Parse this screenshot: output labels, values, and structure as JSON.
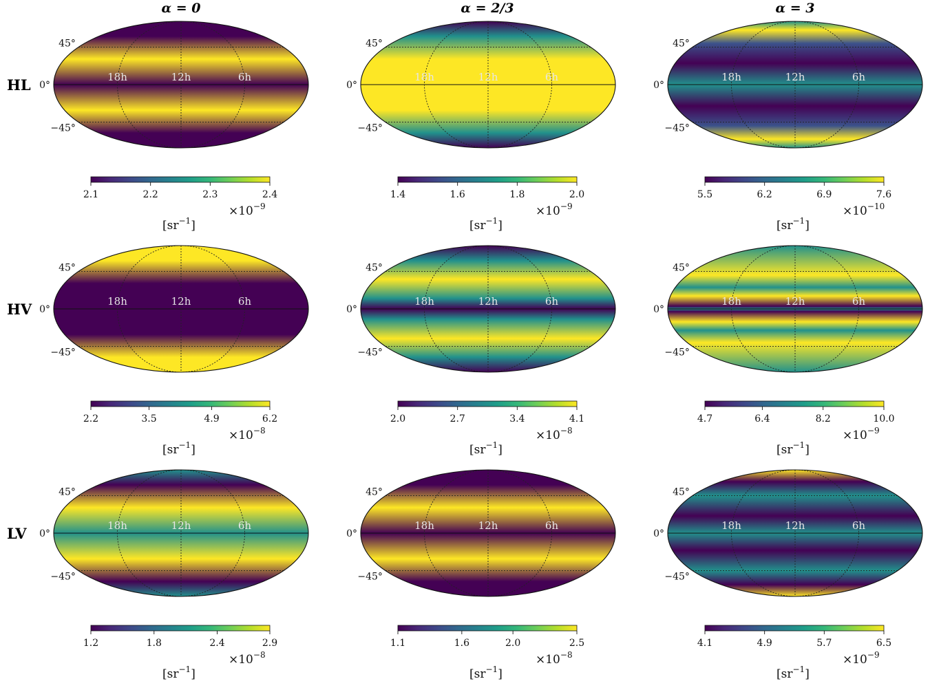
{
  "chart_data": {
    "type": "heatmap",
    "projection": "mollweide",
    "colormap": "viridis",
    "grid": true,
    "column_titles": [
      "α = 0",
      "α = 2/3",
      "α = 3"
    ],
    "row_labels": [
      "HL",
      "HV",
      "LV"
    ],
    "latitude_ticks": [
      "45°",
      "0°",
      "−45°"
    ],
    "ra_labels": [
      "18h",
      "12h",
      "6h"
    ],
    "colorbar_unit": "[sr",
    "colorbar_unit_exp": "−1",
    "colorbar_unit_close": "]",
    "panels": [
      {
        "row": "HL",
        "column": "α = 0",
        "ticks": [
          "2.1",
          "2.2",
          "2.3",
          "2.4"
        ],
        "range": [
          2.1,
          2.4
        ],
        "scale_base": "×10",
        "scale_exp": "−9",
        "bands": [
          [
            -90,
            "low"
          ],
          [
            -60,
            "low"
          ],
          [
            -30,
            "high"
          ],
          [
            0,
            "low"
          ],
          [
            30,
            "high"
          ],
          [
            60,
            "low"
          ],
          [
            90,
            "low"
          ]
        ]
      },
      {
        "row": "HL",
        "column": "α = 2/3",
        "ticks": [
          "1.4",
          "1.6",
          "1.8",
          "2.0"
        ],
        "range": [
          1.4,
          2.0
        ],
        "scale_base": "×10",
        "scale_exp": "−9",
        "bands": [
          [
            -90,
            "low"
          ],
          [
            -60,
            "mid"
          ],
          [
            -30,
            "high"
          ],
          [
            0,
            "high"
          ],
          [
            30,
            "high"
          ],
          [
            60,
            "mid"
          ],
          [
            90,
            "low"
          ]
        ]
      },
      {
        "row": "HL",
        "column": "α = 3",
        "ticks": [
          "5.5",
          "6.2",
          "6.9",
          "7.6"
        ],
        "range": [
          5.5,
          7.6
        ],
        "scale_base": "×10",
        "scale_exp": "−10",
        "bands": [
          [
            -90,
            "mid"
          ],
          [
            -70,
            "high"
          ],
          [
            -50,
            "midlow"
          ],
          [
            -25,
            "low"
          ],
          [
            0,
            "mid"
          ],
          [
            25,
            "low"
          ],
          [
            50,
            "midlow"
          ],
          [
            70,
            "high"
          ],
          [
            90,
            "mid"
          ]
        ]
      },
      {
        "row": "HV",
        "column": "α = 0",
        "ticks": [
          "2.2",
          "3.5",
          "4.9",
          "6.2"
        ],
        "range": [
          2.2,
          6.2
        ],
        "scale_base": "×10",
        "scale_exp": "−8",
        "bands": [
          [
            -90,
            "high"
          ],
          [
            -60,
            "high"
          ],
          [
            -30,
            "low"
          ],
          [
            0,
            "low"
          ],
          [
            30,
            "low"
          ],
          [
            60,
            "high"
          ],
          [
            90,
            "high"
          ]
        ]
      },
      {
        "row": "HV",
        "column": "α = 2/3",
        "ticks": [
          "2.0",
          "2.7",
          "3.4",
          "4.1"
        ],
        "range": [
          2.0,
          4.1
        ],
        "scale_base": "×10",
        "scale_exp": "−8",
        "bands": [
          [
            -90,
            "low"
          ],
          [
            -60,
            "mid"
          ],
          [
            -35,
            "high"
          ],
          [
            -12,
            "mid"
          ],
          [
            0,
            "low"
          ],
          [
            12,
            "mid"
          ],
          [
            35,
            "high"
          ],
          [
            60,
            "mid"
          ],
          [
            90,
            "low"
          ]
        ]
      },
      {
        "row": "HV",
        "column": "α = 3",
        "ticks": [
          "4.7",
          "6.4",
          "8.2",
          "10.0"
        ],
        "range": [
          4.7,
          10.0
        ],
        "scale_base": "×10",
        "scale_exp": "−9",
        "bands": [
          [
            -90,
            "mid"
          ],
          [
            -40,
            "high"
          ],
          [
            -25,
            "mid"
          ],
          [
            -15,
            "high"
          ],
          [
            -3,
            "low"
          ],
          [
            0,
            "mid"
          ],
          [
            3,
            "low"
          ],
          [
            15,
            "high"
          ],
          [
            25,
            "mid"
          ],
          [
            40,
            "high"
          ],
          [
            90,
            "mid"
          ]
        ]
      },
      {
        "row": "LV",
        "column": "α = 0",
        "ticks": [
          "1.2",
          "1.8",
          "2.4",
          "2.9"
        ],
        "range": [
          1.2,
          2.9
        ],
        "scale_base": "×10",
        "scale_exp": "−8",
        "bands": [
          [
            -90,
            "mid"
          ],
          [
            -60,
            "low"
          ],
          [
            -30,
            "high"
          ],
          [
            0,
            "mid"
          ],
          [
            30,
            "high"
          ],
          [
            60,
            "low"
          ],
          [
            90,
            "mid"
          ]
        ]
      },
      {
        "row": "LV",
        "column": "α = 2/3",
        "ticks": [
          "1.1",
          "1.6",
          "2.0",
          "2.5"
        ],
        "range": [
          1.1,
          2.5
        ],
        "scale_base": "×10",
        "scale_exp": "−8",
        "bands": [
          [
            -90,
            "low"
          ],
          [
            -60,
            "low"
          ],
          [
            -30,
            "high"
          ],
          [
            0,
            "low"
          ],
          [
            30,
            "high"
          ],
          [
            60,
            "low"
          ],
          [
            90,
            "low"
          ]
        ]
      },
      {
        "row": "LV",
        "column": "α = 3",
        "ticks": [
          "4.1",
          "4.9",
          "5.7",
          "6.5"
        ],
        "range": [
          4.1,
          6.5
        ],
        "scale_base": "×10",
        "scale_exp": "−9",
        "bands": [
          [
            -90,
            "high"
          ],
          [
            -65,
            "low"
          ],
          [
            -45,
            "mid"
          ],
          [
            -20,
            "low"
          ],
          [
            0,
            "mid"
          ],
          [
            20,
            "low"
          ],
          [
            45,
            "mid"
          ],
          [
            65,
            "low"
          ],
          [
            90,
            "high"
          ]
        ]
      }
    ]
  },
  "colors": {
    "low": "#440154",
    "midlow": "#3b528b",
    "mid": "#21918c",
    "high": "#fde725"
  }
}
